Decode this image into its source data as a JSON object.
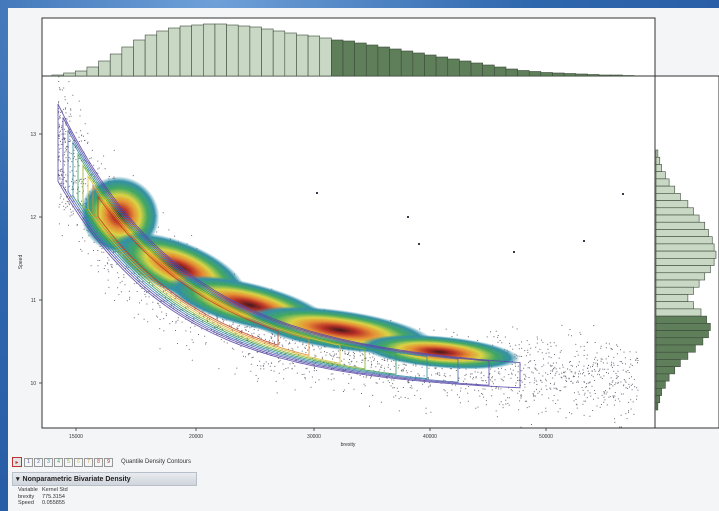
{
  "colors": {
    "hist_light": "#c9d8c4",
    "hist_dark": "#5f7f5a",
    "hist_stroke": "#3c4a3a",
    "points": "#3a3a4a",
    "contour_outer": "#5a4aa8"
  },
  "chart_data": {
    "type": "scatter",
    "subtype": "bivariate density with marginal histograms",
    "xlabel": "brexity",
    "ylabel": "Speed",
    "x_ticks": [
      "15000",
      "20000",
      "30000",
      "40000",
      "50000"
    ],
    "y_ticks": [
      "13",
      "12",
      "11",
      "10"
    ],
    "top_histogram": {
      "counts": [
        2,
        6,
        10,
        18,
        30,
        44,
        58,
        72,
        82,
        90,
        96,
        100,
        102,
        104,
        104,
        102,
        100,
        98,
        94,
        90,
        86,
        82,
        80,
        76,
        72,
        70,
        66,
        62,
        58,
        54,
        50,
        46,
        42,
        38,
        34,
        30,
        26,
        22,
        18,
        14,
        11,
        9,
        7,
        6,
        5,
        4,
        3,
        2,
        2,
        1
      ],
      "highlighted_from_index": 24
    },
    "right_histogram": {
      "counts": [
        2,
        4,
        6,
        10,
        14,
        20,
        26,
        34,
        40,
        46,
        52,
        56,
        60,
        62,
        64,
        62,
        58,
        52,
        46,
        40,
        34,
        40,
        48,
        54,
        58,
        56,
        50,
        42,
        34,
        26,
        20,
        14,
        10,
        6,
        4,
        2
      ],
      "highlighted_from_index": 23
    },
    "grid": false
  },
  "legend": {
    "boxes": [
      "1",
      "2",
      "3",
      "4",
      "5",
      "6",
      "7",
      "8",
      "9"
    ],
    "label": "Quantile Density Contours"
  },
  "report": {
    "title": "Nonparametric Bivariate Density",
    "rows": [
      {
        "k": "Variable",
        "v": "Kernel Std"
      },
      {
        "k": "brexity",
        "v": "775.3154"
      },
      {
        "k": "Speed",
        "v": "0.055855"
      }
    ]
  }
}
